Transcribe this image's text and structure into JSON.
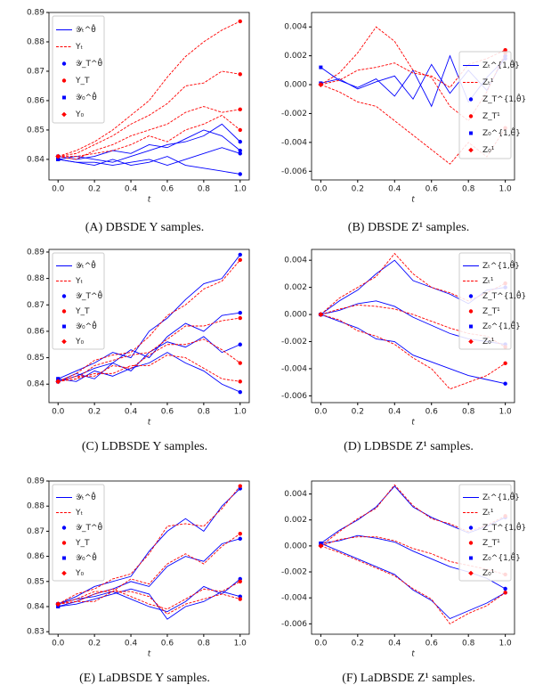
{
  "chart_data": [
    {
      "type": "line",
      "caption": "(A) DBSDE Y samples.",
      "xlabel": "t",
      "legend": "upper left",
      "x": [
        0,
        0.1,
        0.2,
        0.3,
        0.4,
        0.5,
        0.6,
        0.7,
        0.8,
        0.9,
        1.0
      ],
      "xlim": [
        -0.05,
        1.05
      ],
      "xticks": [
        {
          "value": 0,
          "label": "0.0"
        },
        0.2,
        0.4,
        0.6,
        0.8,
        {
          "value": 1,
          "label": "1.0"
        }
      ],
      "ylim": [
        0.833,
        0.89
      ],
      "yticks": [
        0.84,
        0.85,
        0.86,
        0.87,
        0.88,
        0.89
      ],
      "series": [
        {
          "name": "𝒴ₜ^θ̂",
          "color": "#0000ff",
          "dash": false,
          "paths": [
            [
              0.84,
              0.841,
              0.84,
              0.839,
              0.841,
              0.843,
              0.845,
              0.846,
              0.848,
              0.852,
              0.846
            ],
            [
              0.84,
              0.839,
              0.838,
              0.84,
              0.838,
              0.839,
              0.841,
              0.838,
              0.837,
              0.836,
              0.835
            ],
            [
              0.841,
              0.84,
              0.841,
              0.843,
              0.842,
              0.845,
              0.844,
              0.847,
              0.85,
              0.848,
              0.843
            ],
            [
              0.84,
              0.839,
              0.839,
              0.838,
              0.839,
              0.84,
              0.838,
              0.84,
              0.842,
              0.844,
              0.842
            ]
          ]
        },
        {
          "name": "Yₜ",
          "color": "#ff0000",
          "dash": true,
          "paths": [
            [
              0.841,
              0.843,
              0.846,
              0.85,
              0.855,
              0.86,
              0.868,
              0.875,
              0.88,
              0.884,
              0.887
            ],
            [
              0.841,
              0.842,
              0.845,
              0.848,
              0.852,
              0.855,
              0.859,
              0.865,
              0.866,
              0.87,
              0.869
            ],
            [
              0.841,
              0.84,
              0.843,
              0.845,
              0.848,
              0.85,
              0.852,
              0.856,
              0.858,
              0.856,
              0.857
            ],
            [
              0.841,
              0.841,
              0.842,
              0.843,
              0.845,
              0.848,
              0.846,
              0.85,
              0.852,
              0.855,
              0.85
            ]
          ]
        }
      ],
      "markers": [
        {
          "name": "𝒴_T^θ̂",
          "color": "#0000ff",
          "shape": "circle"
        },
        {
          "name": "Y_T",
          "color": "#ff0000",
          "shape": "circle"
        },
        {
          "name": "𝒴₀^θ̂",
          "color": "#0000ff",
          "shape": "square"
        },
        {
          "name": "Y₀",
          "color": "#ff0000",
          "shape": "diamond"
        }
      ]
    },
    {
      "type": "line",
      "caption": "(B) DBSDE Z¹ samples.",
      "xlabel": "t",
      "legend": "center right",
      "x": [
        0,
        0.1,
        0.2,
        0.3,
        0.4,
        0.5,
        0.6,
        0.7,
        0.8,
        0.9,
        1.0
      ],
      "xlim": [
        -0.05,
        1.05
      ],
      "xticks": [
        {
          "value": 0,
          "label": "0.0"
        },
        0.2,
        0.4,
        0.6,
        0.8,
        {
          "value": 1,
          "label": "1.0"
        }
      ],
      "ylim": [
        -0.0066,
        0.005
      ],
      "yticks": [
        -0.006,
        -0.004,
        -0.002,
        {
          "value": 0,
          "label": "0.000"
        },
        0.002,
        0.004
      ],
      "series": [
        {
          "name": "Zₜ^{1,θ̂}",
          "color": "#0000ff",
          "dash": false,
          "paths": [
            [
              0.0012,
              0.0003,
              -0.0002,
              0.0004,
              -0.0008,
              0.001,
              -0.0015,
              0.002,
              -0.0012,
              0.0005,
              0.0018
            ],
            [
              0.0001,
              0.0004,
              -0.0003,
              0.0002,
              0.0006,
              -0.001,
              0.0014,
              -0.0006,
              0.001,
              -0.0004,
              0.002
            ]
          ]
        },
        {
          "name": "Zₜ¹",
          "color": "#ff0000",
          "dash": true,
          "paths": [
            [
              0.0,
              0.0008,
              0.0022,
              0.004,
              0.003,
              0.001,
              0.0005,
              -0.0015,
              -0.0025,
              -0.0005,
              0.0022
            ],
            [
              0.0,
              -0.0005,
              -0.0012,
              -0.0015,
              -0.0025,
              -0.0035,
              -0.0045,
              -0.0055,
              -0.004,
              -0.005,
              -0.003
            ],
            [
              0.0,
              0.0003,
              0.001,
              0.0012,
              0.0015,
              0.0008,
              0.0006,
              -0.0002,
              0.0014,
              0.0018,
              0.0024
            ]
          ]
        }
      ],
      "markers": [
        {
          "name": "Z_T^{1,θ̂}",
          "color": "#0000ff",
          "shape": "circle"
        },
        {
          "name": "Z_T¹",
          "color": "#ff0000",
          "shape": "circle"
        },
        {
          "name": "Z₀^{1,θ̂}",
          "color": "#0000ff",
          "shape": "square"
        },
        {
          "name": "Z₀¹",
          "color": "#ff0000",
          "shape": "diamond"
        }
      ]
    },
    {
      "type": "line",
      "caption": "(C) LDBSDE Y samples.",
      "xlabel": "t",
      "legend": "upper left",
      "x": [
        0,
        0.1,
        0.2,
        0.3,
        0.4,
        0.5,
        0.6,
        0.7,
        0.8,
        0.9,
        1.0
      ],
      "xlim": [
        -0.05,
        1.05
      ],
      "xticks": [
        {
          "value": 0,
          "label": "0.0"
        },
        0.2,
        0.4,
        0.6,
        0.8,
        {
          "value": 1,
          "label": "1.0"
        }
      ],
      "ylim": [
        0.833,
        0.891
      ],
      "yticks": [
        0.84,
        0.85,
        0.86,
        0.87,
        0.88,
        0.89
      ],
      "series": [
        {
          "name": "𝒴ₜ^θ̂",
          "color": "#0000ff",
          "dash": false,
          "paths": [
            [
              0.842,
              0.845,
              0.848,
              0.852,
              0.85,
              0.86,
              0.865,
              0.872,
              0.878,
              0.88,
              0.889
            ],
            [
              0.841,
              0.843,
              0.846,
              0.848,
              0.853,
              0.85,
              0.858,
              0.863,
              0.86,
              0.866,
              0.867
            ],
            [
              0.842,
              0.841,
              0.845,
              0.843,
              0.846,
              0.848,
              0.852,
              0.848,
              0.845,
              0.84,
              0.837
            ],
            [
              0.841,
              0.844,
              0.842,
              0.848,
              0.845,
              0.852,
              0.856,
              0.854,
              0.858,
              0.852,
              0.855
            ]
          ]
        },
        {
          "name": "Yₜ",
          "color": "#ff0000",
          "dash": true,
          "paths": [
            [
              0.841,
              0.844,
              0.849,
              0.851,
              0.852,
              0.858,
              0.866,
              0.87,
              0.876,
              0.879,
              0.887
            ],
            [
              0.841,
              0.842,
              0.847,
              0.849,
              0.851,
              0.852,
              0.857,
              0.862,
              0.862,
              0.864,
              0.865
            ],
            [
              0.841,
              0.842,
              0.844,
              0.844,
              0.847,
              0.847,
              0.851,
              0.85,
              0.846,
              0.842,
              0.841
            ],
            [
              0.841,
              0.843,
              0.843,
              0.847,
              0.846,
              0.851,
              0.855,
              0.855,
              0.857,
              0.853,
              0.848
            ]
          ]
        }
      ],
      "markers": [
        {
          "name": "𝒴_T^θ̂",
          "color": "#0000ff",
          "shape": "circle"
        },
        {
          "name": "Y_T",
          "color": "#ff0000",
          "shape": "circle"
        },
        {
          "name": "𝒴₀^θ̂",
          "color": "#0000ff",
          "shape": "square"
        },
        {
          "name": "Y₀",
          "color": "#ff0000",
          "shape": "diamond"
        }
      ]
    },
    {
      "type": "line",
      "caption": "(D) LDBSDE Z¹ samples.",
      "xlabel": "t",
      "legend": "upper right",
      "x": [
        0,
        0.1,
        0.2,
        0.3,
        0.4,
        0.5,
        0.6,
        0.7,
        0.8,
        0.9,
        1.0
      ],
      "xlim": [
        -0.05,
        1.05
      ],
      "xticks": [
        {
          "value": 0,
          "label": "0.0"
        },
        0.2,
        0.4,
        0.6,
        0.8,
        {
          "value": 1,
          "label": "1.0"
        }
      ],
      "ylim": [
        -0.0065,
        0.0048
      ],
      "yticks": [
        -0.006,
        -0.004,
        -0.002,
        {
          "value": 0,
          "label": "0.000"
        },
        0.002,
        0.004
      ],
      "series": [
        {
          "name": "Zₜ^{1,θ̂}",
          "color": "#0000ff",
          "dash": false,
          "paths": [
            [
              0.0,
              0.001,
              0.0018,
              0.003,
              0.004,
              0.0025,
              0.002,
              0.0015,
              0.0008,
              0.0018,
              0.002
            ],
            [
              0.0,
              -0.0005,
              -0.001,
              -0.0018,
              -0.002,
              -0.003,
              -0.0035,
              -0.004,
              -0.0045,
              -0.0048,
              -0.0051
            ],
            [
              0.0,
              0.0003,
              0.0008,
              0.001,
              0.0006,
              -0.0002,
              -0.0008,
              -0.0014,
              -0.0018,
              -0.002,
              -0.0022
            ]
          ]
        },
        {
          "name": "Zₜ¹",
          "color": "#ff0000",
          "dash": true,
          "paths": [
            [
              0.0,
              0.0012,
              0.002,
              0.0028,
              0.0045,
              0.003,
              0.002,
              0.0016,
              0.001,
              0.0016,
              0.0023
            ],
            [
              0.0,
              -0.0004,
              -0.0012,
              -0.0016,
              -0.0022,
              -0.0032,
              -0.004,
              -0.0055,
              -0.005,
              -0.0045,
              -0.0036
            ],
            [
              0.0,
              0.0004,
              0.0007,
              0.0006,
              0.0004,
              0.0,
              -0.0005,
              -0.001,
              -0.0014,
              -0.0016,
              -0.0024
            ]
          ]
        }
      ],
      "markers": [
        {
          "name": "Z_T^{1,θ̂}",
          "color": "#0000ff",
          "shape": "circle"
        },
        {
          "name": "Z_T¹",
          "color": "#ff0000",
          "shape": "circle"
        },
        {
          "name": "Z₀^{1,θ̂}",
          "color": "#0000ff",
          "shape": "square"
        },
        {
          "name": "Z₀¹",
          "color": "#ff0000",
          "shape": "diamond"
        }
      ]
    },
    {
      "type": "line",
      "caption": "(E) LaDBSDE Y samples.",
      "xlabel": "t",
      "legend": "upper left",
      "x": [
        0,
        0.1,
        0.2,
        0.3,
        0.4,
        0.5,
        0.6,
        0.7,
        0.8,
        0.9,
        1.0
      ],
      "xlim": [
        -0.05,
        1.05
      ],
      "xticks": [
        {
          "value": 0,
          "label": "0.0"
        },
        0.2,
        0.4,
        0.6,
        0.8,
        {
          "value": 1,
          "label": "1.0"
        }
      ],
      "ylim": [
        0.829,
        0.89
      ],
      "yticks": [
        0.83,
        0.84,
        0.85,
        0.86,
        0.87,
        0.88,
        0.89
      ],
      "series": [
        {
          "name": "𝒴ₜ^θ̂",
          "color": "#0000ff",
          "dash": false,
          "paths": [
            [
              0.841,
              0.844,
              0.848,
              0.85,
              0.852,
              0.862,
              0.87,
              0.875,
              0.87,
              0.88,
              0.887
            ],
            [
              0.84,
              0.842,
              0.845,
              0.847,
              0.85,
              0.848,
              0.856,
              0.86,
              0.858,
              0.865,
              0.867
            ],
            [
              0.841,
              0.843,
              0.844,
              0.846,
              0.843,
              0.84,
              0.838,
              0.842,
              0.848,
              0.845,
              0.851
            ],
            [
              0.84,
              0.841,
              0.843,
              0.845,
              0.847,
              0.845,
              0.835,
              0.84,
              0.842,
              0.846,
              0.844
            ]
          ]
        },
        {
          "name": "Yₜ",
          "color": "#ff0000",
          "dash": true,
          "paths": [
            [
              0.841,
              0.845,
              0.847,
              0.851,
              0.853,
              0.861,
              0.872,
              0.873,
              0.872,
              0.879,
              0.888
            ],
            [
              0.841,
              0.843,
              0.846,
              0.846,
              0.851,
              0.849,
              0.857,
              0.861,
              0.857,
              0.864,
              0.869
            ],
            [
              0.841,
              0.842,
              0.845,
              0.847,
              0.844,
              0.841,
              0.839,
              0.843,
              0.847,
              0.846,
              0.85
            ],
            [
              0.841,
              0.842,
              0.842,
              0.846,
              0.846,
              0.844,
              0.837,
              0.841,
              0.843,
              0.845,
              0.843
            ]
          ]
        }
      ],
      "markers": [
        {
          "name": "𝒴_T^θ̂",
          "color": "#0000ff",
          "shape": "circle"
        },
        {
          "name": "Y_T",
          "color": "#ff0000",
          "shape": "circle"
        },
        {
          "name": "𝒴₀^θ̂",
          "color": "#0000ff",
          "shape": "square"
        },
        {
          "name": "Y₀",
          "color": "#ff0000",
          "shape": "diamond"
        }
      ]
    },
    {
      "type": "line",
      "caption": "(F) LaDBSDE Z¹ samples.",
      "xlabel": "t",
      "legend": "upper right",
      "x": [
        0,
        0.1,
        0.2,
        0.3,
        0.4,
        0.5,
        0.6,
        0.7,
        0.8,
        0.9,
        1.0
      ],
      "xlim": [
        -0.05,
        1.05
      ],
      "xticks": [
        {
          "value": 0,
          "label": "0.0"
        },
        0.2,
        0.4,
        0.6,
        0.8,
        {
          "value": 1,
          "label": "1.0"
        }
      ],
      "ylim": [
        -0.0068,
        0.005
      ],
      "yticks": [
        -0.006,
        -0.004,
        -0.002,
        {
          "value": 0,
          "label": "0.000"
        },
        0.002,
        0.004
      ],
      "series": [
        {
          "name": "Zₜ^{1,θ̂}",
          "color": "#0000ff",
          "dash": false,
          "paths": [
            [
              0.0002,
              0.0012,
              0.002,
              0.003,
              0.0046,
              0.003,
              0.0022,
              0.0016,
              0.001,
              0.0015,
              0.0022
            ],
            [
              0.0002,
              -0.0004,
              -0.001,
              -0.0016,
              -0.0022,
              -0.0034,
              -0.0042,
              -0.0056,
              -0.005,
              -0.0044,
              -0.0036
            ],
            [
              0.0002,
              0.0004,
              0.0008,
              0.0006,
              0.0003,
              -0.0004,
              -0.001,
              -0.0016,
              -0.002,
              -0.0025,
              -0.0033
            ]
          ]
        },
        {
          "name": "Zₜ¹",
          "color": "#ff0000",
          "dash": true,
          "paths": [
            [
              0.0,
              0.0011,
              0.0021,
              0.0029,
              0.0047,
              0.0031,
              0.0021,
              0.0017,
              0.0011,
              0.0016,
              0.0023
            ],
            [
              0.0,
              -0.0005,
              -0.0011,
              -0.0017,
              -0.0023,
              -0.0033,
              -0.0041,
              -0.006,
              -0.0052,
              -0.0046,
              -0.0036
            ],
            [
              0.0,
              0.0005,
              0.0007,
              0.0007,
              0.0004,
              -0.0002,
              -0.0006,
              -0.0012,
              -0.0015,
              -0.0018,
              -0.0022
            ]
          ]
        }
      ],
      "markers": [
        {
          "name": "Z_T^{1,θ̂}",
          "color": "#0000ff",
          "shape": "circle"
        },
        {
          "name": "Z_T¹",
          "color": "#ff0000",
          "shape": "circle"
        },
        {
          "name": "Z₀^{1,θ̂}",
          "color": "#0000ff",
          "shape": "square"
        },
        {
          "name": "Z₀¹",
          "color": "#ff0000",
          "shape": "diamond"
        }
      ]
    }
  ]
}
